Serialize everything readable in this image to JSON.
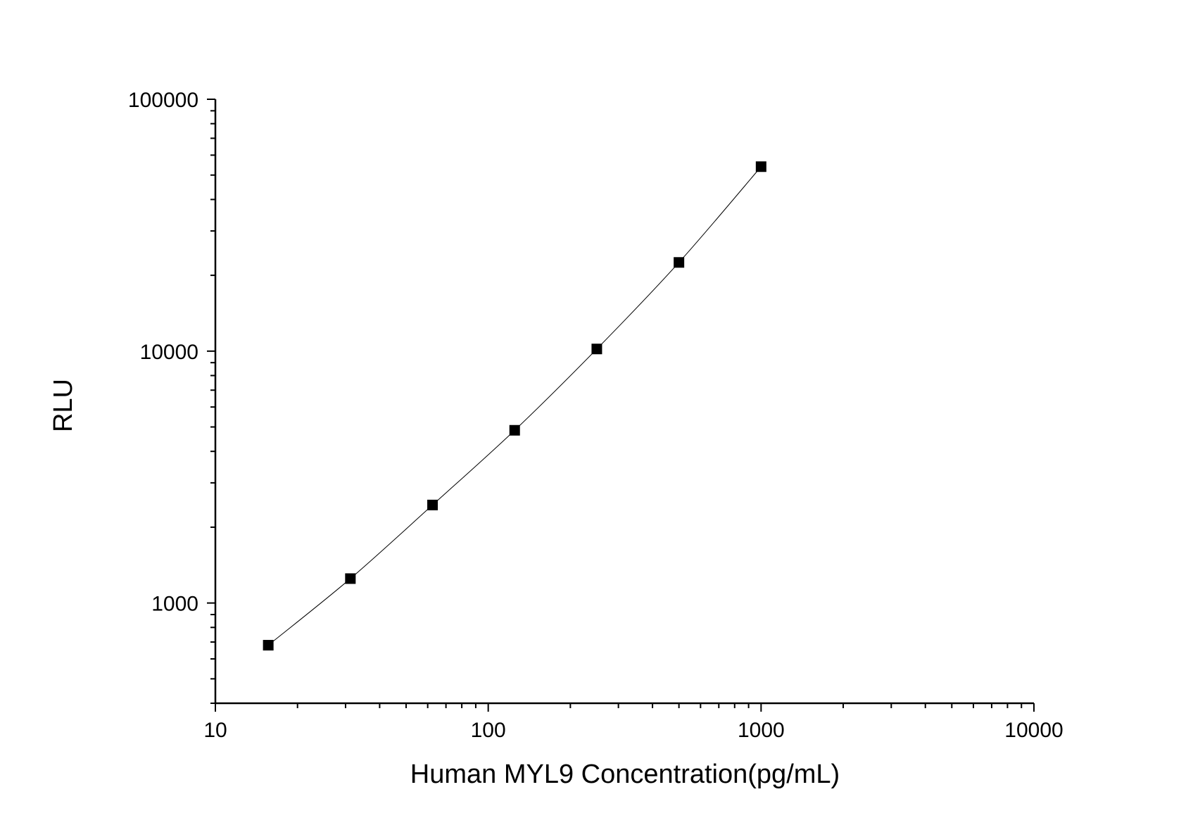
{
  "chart_data": {
    "type": "scatter",
    "xlabel": "Human MYL9 Concentration(pg/mL)",
    "ylabel": "RLU",
    "xscale": "log",
    "yscale": "log",
    "xlim": [
      10,
      10000
    ],
    "ylim": [
      400,
      100000
    ],
    "x_ticks": [
      10,
      100,
      1000,
      10000
    ],
    "x_tick_labels": [
      "10",
      "100",
      "1000",
      "10000"
    ],
    "y_ticks": [
      1000,
      10000,
      100000
    ],
    "y_tick_labels": [
      "1000",
      "10000",
      "100000"
    ],
    "grid": false,
    "legend": "none",
    "marker": "square",
    "color": "#000000",
    "x": [
      15.625,
      31.25,
      62.5,
      125,
      250,
      500,
      1000
    ],
    "y": [
      680,
      1250,
      2450,
      4850,
      10200,
      22500,
      54000
    ]
  }
}
